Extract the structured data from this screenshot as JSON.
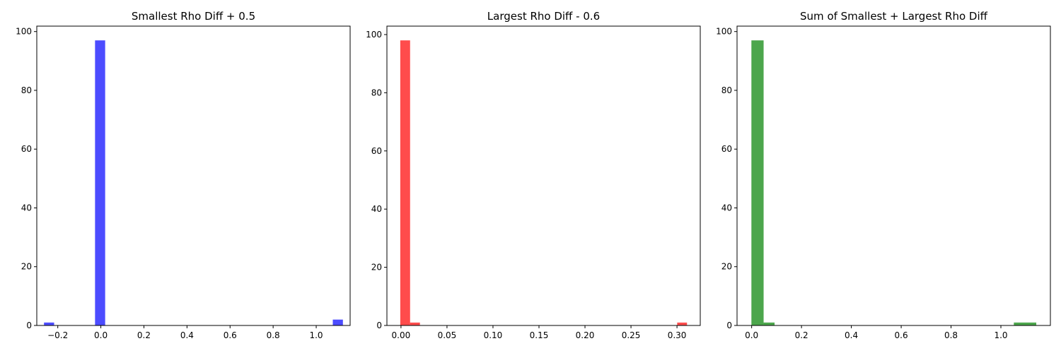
{
  "chart_data": [
    {
      "type": "bar",
      "title": "Smallest Rho Diff + 0.5",
      "xlabel": "",
      "ylabel": "",
      "color": "#0000ff",
      "opacity": 0.7,
      "xlim": [
        -0.2975,
        1.1575
      ],
      "ylim": [
        0,
        101.85
      ],
      "xticks": [
        -0.2,
        0.0,
        0.2,
        0.4,
        0.6,
        0.8,
        1.0
      ],
      "xtick_labels": [
        "−0.2",
        "0.0",
        "0.2",
        "0.4",
        "0.6",
        "0.8",
        "1.0"
      ],
      "yticks": [
        0,
        20,
        40,
        60,
        80,
        100
      ],
      "ytick_labels": [
        "0",
        "20",
        "40",
        "60",
        "80",
        "100"
      ],
      "grid": false,
      "bars": [
        {
          "x0": -0.264,
          "x1": -0.217,
          "value": 1
        },
        {
          "x0": -0.027,
          "x1": 0.02,
          "value": 97
        },
        {
          "x0": 1.077,
          "x1": 1.124,
          "value": 2
        }
      ]
    },
    {
      "type": "bar",
      "title": "Largest Rho Diff - 0.6",
      "xlabel": "",
      "ylabel": "",
      "color": "#ff0000",
      "opacity": 0.7,
      "xlim": [
        -0.0153,
        0.3253
      ],
      "ylim": [
        0,
        102.9
      ],
      "xticks": [
        0.0,
        0.05,
        0.1,
        0.15,
        0.2,
        0.25,
        0.3
      ],
      "xtick_labels": [
        "0.00",
        "0.05",
        "0.10",
        "0.15",
        "0.20",
        "0.25",
        "0.30"
      ],
      "yticks": [
        0,
        20,
        40,
        60,
        80,
        100
      ],
      "ytick_labels": [
        "0",
        "20",
        "40",
        "60",
        "80",
        "100"
      ],
      "grid": false,
      "bars": [
        {
          "x0": -0.0008,
          "x1": 0.0099,
          "value": 98
        },
        {
          "x0": 0.0099,
          "x1": 0.0206,
          "value": 1
        },
        {
          "x0": 0.3002,
          "x1": 0.3109,
          "value": 1
        }
      ]
    },
    {
      "type": "bar",
      "title": "Sum of Smallest + Largest Rho Diff",
      "xlabel": "",
      "ylabel": "",
      "color": "#008000",
      "opacity": 0.7,
      "xlim": [
        -0.0586,
        1.1986
      ],
      "ylim": [
        0,
        101.85
      ],
      "xticks": [
        0.0,
        0.2,
        0.4,
        0.6,
        0.8,
        1.0
      ],
      "xtick_labels": [
        "0.0",
        "0.2",
        "0.4",
        "0.6",
        "0.8",
        "1.0"
      ],
      "yticks": [
        0,
        20,
        40,
        60,
        80,
        100
      ],
      "ytick_labels": [
        "0",
        "20",
        "40",
        "60",
        "80",
        "100"
      ],
      "grid": false,
      "bars": [
        {
          "x0": -0.001,
          "x1": 0.048,
          "value": 97
        },
        {
          "x0": 0.048,
          "x1": 0.092,
          "value": 1
        },
        {
          "x0": 1.052,
          "x1": 1.142,
          "value": 1
        }
      ]
    }
  ]
}
